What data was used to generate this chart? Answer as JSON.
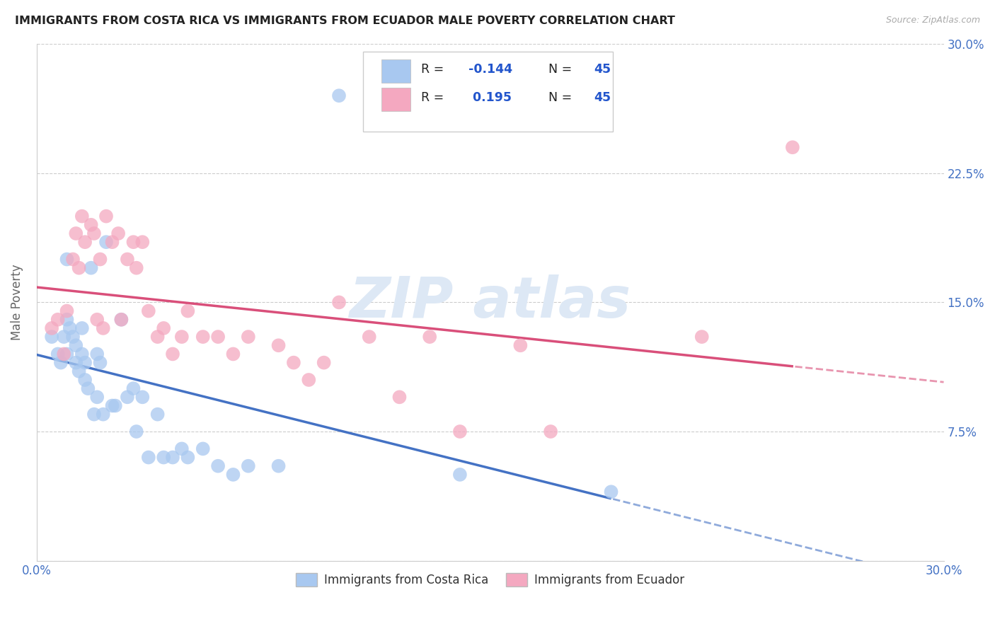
{
  "title": "IMMIGRANTS FROM COSTA RICA VS IMMIGRANTS FROM ECUADOR MALE POVERTY CORRELATION CHART",
  "source": "Source: ZipAtlas.com",
  "ylabel": "Male Poverty",
  "xlim": [
    0.0,
    0.3
  ],
  "ylim": [
    0.0,
    0.3
  ],
  "ytick_vals": [
    0.0,
    0.075,
    0.15,
    0.225,
    0.3
  ],
  "xtick_vals": [
    0.0,
    0.05,
    0.1,
    0.15,
    0.2,
    0.25,
    0.3
  ],
  "costa_rica_color": "#a8c8f0",
  "ecuador_color": "#f4a8c0",
  "costa_rica_line_color": "#4472c4",
  "ecuador_line_color": "#d94f7a",
  "legend_R_color": "#2255cc",
  "background_color": "#ffffff",
  "watermark_color": "#dde8f5",
  "costa_rica_x": [
    0.005,
    0.007,
    0.008,
    0.009,
    0.01,
    0.01,
    0.01,
    0.011,
    0.012,
    0.013,
    0.013,
    0.014,
    0.015,
    0.015,
    0.016,
    0.016,
    0.017,
    0.018,
    0.019,
    0.02,
    0.02,
    0.021,
    0.022,
    0.023,
    0.025,
    0.026,
    0.028,
    0.03,
    0.032,
    0.033,
    0.035,
    0.037,
    0.04,
    0.042,
    0.045,
    0.048,
    0.05,
    0.055,
    0.06,
    0.065,
    0.07,
    0.08,
    0.1,
    0.14,
    0.19
  ],
  "costa_rica_y": [
    0.13,
    0.12,
    0.115,
    0.13,
    0.175,
    0.14,
    0.12,
    0.135,
    0.13,
    0.125,
    0.115,
    0.11,
    0.135,
    0.12,
    0.115,
    0.105,
    0.1,
    0.17,
    0.085,
    0.12,
    0.095,
    0.115,
    0.085,
    0.185,
    0.09,
    0.09,
    0.14,
    0.095,
    0.1,
    0.075,
    0.095,
    0.06,
    0.085,
    0.06,
    0.06,
    0.065,
    0.06,
    0.065,
    0.055,
    0.05,
    0.055,
    0.055,
    0.27,
    0.05,
    0.04
  ],
  "ecuador_x": [
    0.005,
    0.007,
    0.009,
    0.01,
    0.012,
    0.013,
    0.014,
    0.015,
    0.016,
    0.018,
    0.019,
    0.02,
    0.021,
    0.022,
    0.023,
    0.025,
    0.027,
    0.028,
    0.03,
    0.032,
    0.033,
    0.035,
    0.037,
    0.04,
    0.042,
    0.045,
    0.048,
    0.05,
    0.055,
    0.06,
    0.065,
    0.07,
    0.08,
    0.085,
    0.09,
    0.095,
    0.1,
    0.11,
    0.12,
    0.13,
    0.14,
    0.16,
    0.17,
    0.22,
    0.25
  ],
  "ecuador_y": [
    0.135,
    0.14,
    0.12,
    0.145,
    0.175,
    0.19,
    0.17,
    0.2,
    0.185,
    0.195,
    0.19,
    0.14,
    0.175,
    0.135,
    0.2,
    0.185,
    0.19,
    0.14,
    0.175,
    0.185,
    0.17,
    0.185,
    0.145,
    0.13,
    0.135,
    0.12,
    0.13,
    0.145,
    0.13,
    0.13,
    0.12,
    0.13,
    0.125,
    0.115,
    0.105,
    0.115,
    0.15,
    0.13,
    0.095,
    0.13,
    0.075,
    0.125,
    0.075,
    0.13,
    0.24
  ]
}
